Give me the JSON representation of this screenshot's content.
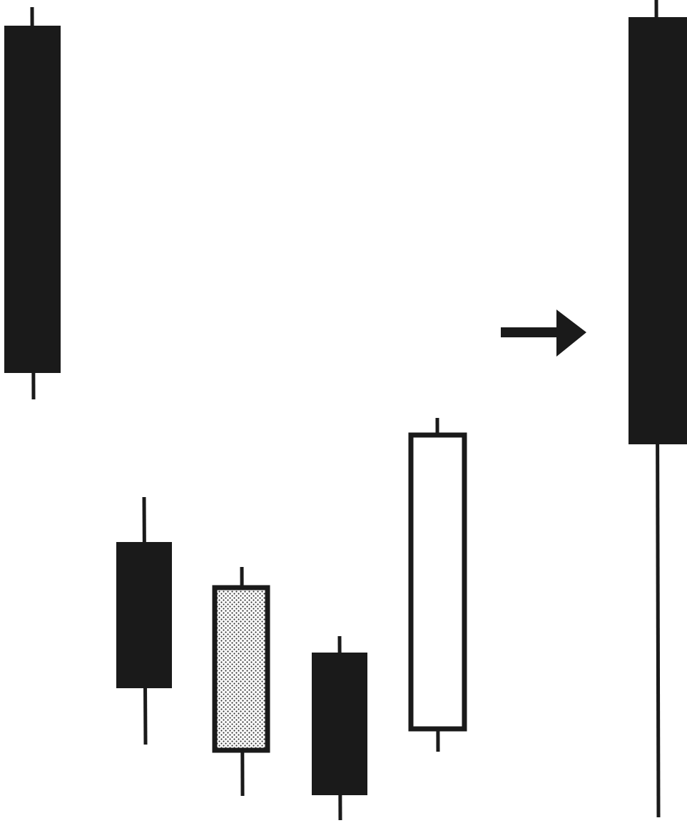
{
  "diagram": {
    "type": "candlestick-pattern",
    "candles": [
      {
        "style": "filled"
      },
      {
        "style": "filled"
      },
      {
        "style": "dotted"
      },
      {
        "style": "filled"
      },
      {
        "style": "hollow"
      }
    ],
    "arrow": {
      "direction": "right"
    },
    "result_candle": {
      "style": "filled"
    },
    "colors": {
      "background": "#ffffff",
      "ink": "#1a1a1a",
      "dot_fill": "#c8c8c8"
    }
  }
}
